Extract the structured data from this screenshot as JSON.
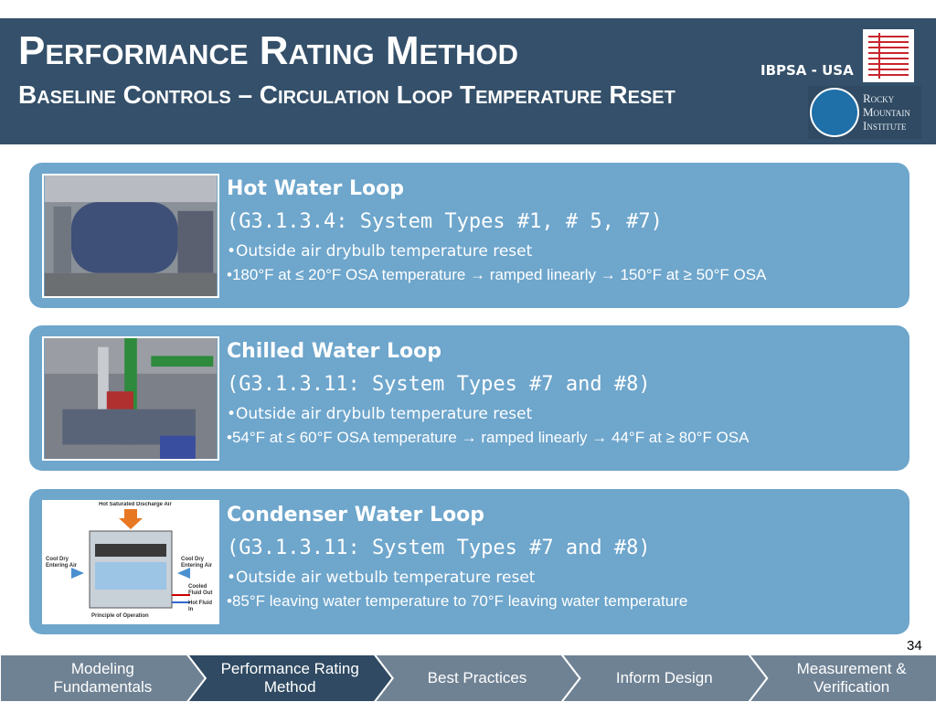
{
  "header": {
    "title": "Performance Rating Method",
    "subtitle": "Baseline Controls – Circulation Loop Temperature Reset",
    "logo_left": "IBPSA - USA",
    "logo_right": [
      "Rocky",
      "Mountain",
      "Institute"
    ]
  },
  "cards": [
    {
      "title": "Hot Water Loop",
      "code": "(G3.1.3.4: System Types #1, # 5, #7)",
      "bullets": [
        "Outside air drybulb temperature reset",
        "180°F at ≤ 20°F OSA temperature → ramped linearly → 150°F at ≥ 50°F OSA"
      ]
    },
    {
      "title": "Chilled Water Loop",
      "code": "(G3.1.3.11: System Types #7 and #8)",
      "bullets": [
        "Outside air drybulb temperature reset",
        "54°F at ≤ 60°F OSA temperature → ramped linearly → 44°F at ≥ 80°F OSA"
      ]
    },
    {
      "title": "Condenser Water Loop",
      "code": "(G3.1.3.11: System Types #7 and #8)",
      "bullets": [
        "Outside air wetbulb temperature reset",
        "85°F leaving water temperature to 70°F leaving water temperature"
      ],
      "image_labels": [
        "Hot Saturated Discharge Air",
        "Cool Dry Entering Air",
        "Cool Dry Entering Air",
        "Cooled Fluid Out",
        "Hot Fluid In",
        "Principle of Operation"
      ]
    }
  ],
  "page_number": "34",
  "nav": [
    {
      "label": "Modeling Fundamentals"
    },
    {
      "label": "Performance Rating Method",
      "active": true
    },
    {
      "label": "Best Practices"
    },
    {
      "label": "Inform Design"
    },
    {
      "label": "Measurement & Verification"
    }
  ]
}
